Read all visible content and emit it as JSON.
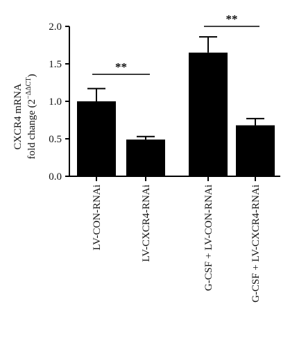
{
  "chart_data": {
    "type": "bar",
    "title": "",
    "ylabel_line1": "CXCR4 mRNA",
    "ylabel_line2_prefix": "fold change (2",
    "ylabel_line2_sup": "−ΔΔCT",
    "ylabel_line2_suffix": ")",
    "xlabel": "",
    "ylim": [
      0,
      2.0
    ],
    "yticks": [
      0.0,
      0.5,
      1.0,
      1.5,
      2.0
    ],
    "ytick_labels": [
      "0.0",
      "0.5",
      "1.0",
      "1.5",
      "2.0"
    ],
    "categories": [
      "LV-CON-RNAi",
      "LV-CXCR4-RNAi",
      "G-CSF + LV-CON-RNAi",
      "G-CSF + LV-CXCR4-RNAi"
    ],
    "values": [
      1.0,
      0.49,
      1.65,
      0.68
    ],
    "errors": [
      0.17,
      0.04,
      0.21,
      0.09
    ],
    "bar_color": "#000000",
    "significance": [
      {
        "from": 0,
        "to": 1,
        "label": "**",
        "y": 1.36
      },
      {
        "from": 2,
        "to": 3,
        "label": "**",
        "y": 2.0
      }
    ]
  }
}
